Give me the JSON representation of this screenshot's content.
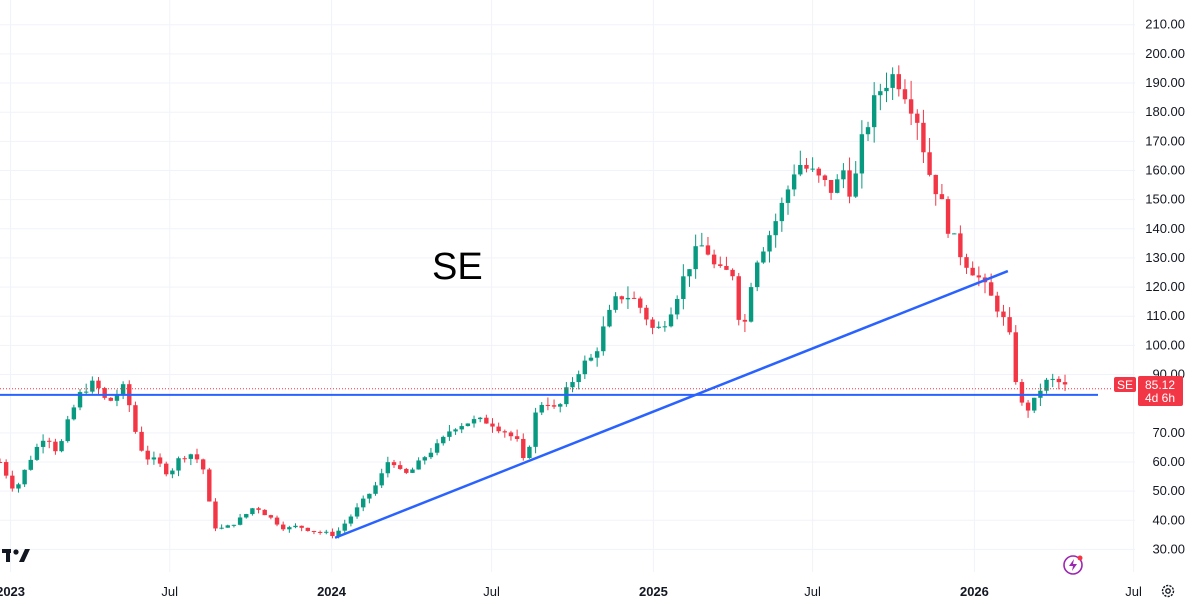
{
  "chart_data": {
    "type": "candlestick",
    "title": "SE",
    "symbol": "SE",
    "price_tag": {
      "symbol": "SE",
      "price": "85.12",
      "countdown": "4d 6h",
      "color": "#f23645"
    },
    "ylim": [
      25,
      213
    ],
    "y_ticks": [
      {
        "value": 210,
        "label": "210.00"
      },
      {
        "value": 200,
        "label": "200.00"
      },
      {
        "value": 190,
        "label": "190.00"
      },
      {
        "value": 180,
        "label": "180.00"
      },
      {
        "value": 170,
        "label": "170.00"
      },
      {
        "value": 160,
        "label": "160.00"
      },
      {
        "value": 150,
        "label": "150.00"
      },
      {
        "value": 140,
        "label": "140.00"
      },
      {
        "value": 130,
        "label": "130.00"
      },
      {
        "value": 120,
        "label": "120.00"
      },
      {
        "value": 110,
        "label": "110.00"
      },
      {
        "value": 100,
        "label": "100.00"
      },
      {
        "value": 90,
        "label": "90.00"
      },
      {
        "value": 70,
        "label": "70.00"
      },
      {
        "value": 60,
        "label": "60.00"
      },
      {
        "value": 50,
        "label": "50.00"
      },
      {
        "value": 40,
        "label": "40.00"
      },
      {
        "value": 30,
        "label": "30.00"
      }
    ],
    "x_range": [
      "2022-12-20",
      "2026-07-31"
    ],
    "x_ticks": [
      {
        "date": "2023-01-01",
        "label": "2023",
        "bold": true
      },
      {
        "date": "2023-07-01",
        "label": "Jul",
        "bold": false
      },
      {
        "date": "2024-01-01",
        "label": "2024",
        "bold": true
      },
      {
        "date": "2024-07-01",
        "label": "Jul",
        "bold": false
      },
      {
        "date": "2025-01-01",
        "label": "2025",
        "bold": true
      },
      {
        "date": "2025-07-01",
        "label": "Jul",
        "bold": false
      },
      {
        "date": "2026-01-01",
        "label": "2026",
        "bold": true
      },
      {
        "date": "2026-07-01",
        "label": "Jul",
        "bold": false
      }
    ],
    "grid": true,
    "colors": {
      "up": "#089981",
      "down": "#f23645",
      "line": "#2962ff",
      "grid": "#f0f3fa"
    },
    "horizontal_line": {
      "value": 83
    },
    "current_price_line": {
      "value": 85.12
    },
    "trendlines": [
      {
        "from": {
          "date": "2024-01-05",
          "value": 34
        },
        "to": {
          "date": "2026-02-08",
          "value": 125.5
        }
      }
    ],
    "weekly_closes_anchors": [
      [
        "2022-12-20",
        60
      ],
      [
        "2023-01-06",
        50
      ],
      [
        "2023-01-25",
        62
      ],
      [
        "2023-02-10",
        70
      ],
      [
        "2023-02-24",
        63
      ],
      [
        "2023-03-10",
        76
      ],
      [
        "2023-03-24",
        85
      ],
      [
        "2023-04-07",
        87
      ],
      [
        "2023-04-21",
        80
      ],
      [
        "2023-05-12",
        86
      ],
      [
        "2023-05-20",
        73
      ],
      [
        "2023-06-02",
        62
      ],
      [
        "2023-06-16",
        60
      ],
      [
        "2023-06-30",
        56
      ],
      [
        "2023-07-14",
        62
      ],
      [
        "2023-07-28",
        63
      ],
      [
        "2023-08-11",
        56
      ],
      [
        "2023-08-18",
        38
      ],
      [
        "2023-09-01",
        37
      ],
      [
        "2023-09-22",
        41
      ],
      [
        "2023-10-06",
        45
      ],
      [
        "2023-10-27",
        40
      ],
      [
        "2023-11-10",
        37
      ],
      [
        "2023-11-24",
        38
      ],
      [
        "2023-12-15",
        36
      ],
      [
        "2024-01-05",
        35
      ],
      [
        "2024-01-19",
        40
      ],
      [
        "2024-02-02",
        45
      ],
      [
        "2024-02-23",
        53
      ],
      [
        "2024-03-08",
        62
      ],
      [
        "2024-03-22",
        55
      ],
      [
        "2024-04-05",
        58
      ],
      [
        "2024-04-19",
        63
      ],
      [
        "2024-05-03",
        66
      ],
      [
        "2024-05-17",
        72
      ],
      [
        "2024-06-07",
        74
      ],
      [
        "2024-06-28",
        74
      ],
      [
        "2024-07-19",
        70
      ],
      [
        "2024-08-02",
        66
      ],
      [
        "2024-08-09",
        56
      ],
      [
        "2024-08-16",
        74
      ],
      [
        "2024-08-30",
        82
      ],
      [
        "2024-09-13",
        77
      ],
      [
        "2024-09-27",
        86
      ],
      [
        "2024-10-11",
        93
      ],
      [
        "2024-10-25",
        96
      ],
      [
        "2024-11-08",
        108
      ],
      [
        "2024-11-22",
        117
      ],
      [
        "2024-12-06",
        117
      ],
      [
        "2024-12-20",
        112
      ],
      [
        "2025-01-03",
        104
      ],
      [
        "2025-01-17",
        110
      ],
      [
        "2025-01-31",
        120
      ],
      [
        "2025-02-14",
        130
      ],
      [
        "2025-02-28",
        135
      ],
      [
        "2025-03-14",
        125
      ],
      [
        "2025-04-04",
        125
      ],
      [
        "2025-04-11",
        100
      ],
      [
        "2025-04-25",
        128
      ],
      [
        "2025-05-16",
        140
      ],
      [
        "2025-05-30",
        150
      ],
      [
        "2025-06-13",
        163
      ],
      [
        "2025-06-27",
        160
      ],
      [
        "2025-07-11",
        156
      ],
      [
        "2025-07-25",
        153
      ],
      [
        "2025-08-08",
        162
      ],
      [
        "2025-08-15",
        148
      ],
      [
        "2025-08-22",
        165
      ],
      [
        "2025-09-05",
        180
      ],
      [
        "2025-09-19",
        190
      ],
      [
        "2025-10-03",
        193
      ],
      [
        "2025-10-17",
        186
      ],
      [
        "2025-10-31",
        176
      ],
      [
        "2025-11-07",
        162
      ],
      [
        "2025-11-21",
        152
      ],
      [
        "2025-12-05",
        138
      ],
      [
        "2025-12-19",
        130
      ],
      [
        "2026-01-02",
        125
      ],
      [
        "2026-01-16",
        118
      ],
      [
        "2026-01-30",
        112
      ],
      [
        "2026-02-13",
        100
      ],
      [
        "2026-02-20",
        80
      ],
      [
        "2026-03-06",
        78
      ],
      [
        "2026-03-20",
        87
      ],
      [
        "2026-04-03",
        88
      ],
      [
        "2026-04-17",
        85.12
      ]
    ]
  }
}
